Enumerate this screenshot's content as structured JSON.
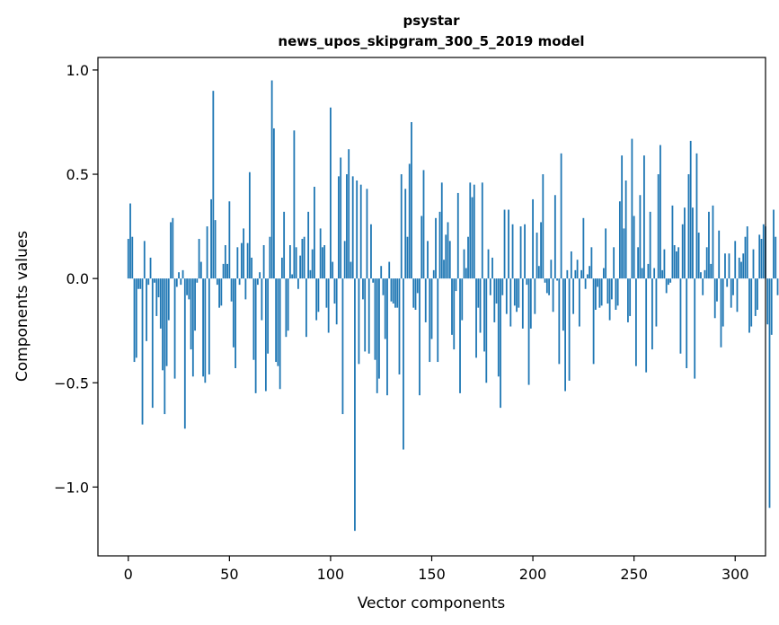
{
  "chart_data": {
    "type": "bar",
    "title_lines": [
      "psystar",
      "news_upos_skipgram_300_5_2019 model"
    ],
    "xlabel": "Vector components",
    "ylabel": "Components values",
    "xlim": [
      -15,
      315
    ],
    "ylim": [
      -1.33,
      1.06
    ],
    "xticks": [
      0,
      50,
      100,
      150,
      200,
      250,
      300
    ],
    "xtick_labels": [
      "0",
      "50",
      "100",
      "150",
      "200",
      "250",
      "300"
    ],
    "yticks": [
      1.0,
      0.5,
      0.0,
      -0.5,
      -1.0
    ],
    "ytick_labels": [
      "1.0",
      "0.5",
      "0.0",
      "−0.5",
      "−1.0"
    ],
    "grid": false,
    "color": "#1f77b4",
    "values": [
      0.19,
      0.36,
      0.2,
      -0.4,
      -0.38,
      -0.05,
      -0.05,
      -0.7,
      0.18,
      -0.3,
      -0.03,
      0.1,
      -0.62,
      -0.02,
      -0.18,
      -0.09,
      -0.24,
      -0.44,
      -0.65,
      -0.42,
      -0.2,
      0.27,
      0.29,
      -0.48,
      -0.04,
      0.03,
      -0.03,
      0.04,
      -0.72,
      -0.08,
      -0.1,
      -0.34,
      -0.47,
      -0.25,
      -0.02,
      0.19,
      0.08,
      -0.47,
      -0.5,
      0.25,
      -0.46,
      0.38,
      0.9,
      0.28,
      -0.03,
      -0.14,
      -0.13,
      0.07,
      0.16,
      0.07,
      0.37,
      -0.11,
      -0.33,
      -0.43,
      0.15,
      -0.03,
      0.17,
      0.24,
      -0.1,
      0.17,
      0.51,
      0.1,
      -0.39,
      -0.55,
      -0.03,
      0.03,
      -0.2,
      0.16,
      -0.54,
      -0.36,
      0.2,
      0.95,
      0.72,
      -0.4,
      -0.42,
      -0.53,
      0.1,
      0.32,
      -0.28,
      -0.25,
      0.16,
      0.02,
      0.71,
      0.15,
      -0.05,
      0.11,
      0.19,
      0.2,
      -0.28,
      0.32,
      0.04,
      0.14,
      0.44,
      -0.2,
      -0.16,
      0.24,
      0.15,
      0.16,
      -0.14,
      -0.26,
      0.82,
      0.08,
      -0.12,
      -0.22,
      0.49,
      0.58,
      -0.65,
      0.18,
      0.5,
      0.62,
      0.08,
      0.49,
      -1.21,
      0.47,
      -0.41,
      0.45,
      -0.1,
      -0.35,
      0.43,
      -0.36,
      0.26,
      -0.02,
      -0.39,
      -0.55,
      -0.48,
      0.06,
      -0.08,
      -0.29,
      -0.56,
      0.08,
      -0.11,
      -0.12,
      -0.14,
      -0.14,
      -0.46,
      0.5,
      -0.82,
      0.43,
      0.2,
      0.55,
      0.75,
      -0.14,
      -0.15,
      -0.07,
      -0.56,
      0.3,
      0.52,
      -0.21,
      0.18,
      -0.4,
      -0.29,
      0.04,
      0.29,
      -0.4,
      0.32,
      0.46,
      0.09,
      0.21,
      0.27,
      0.18,
      -0.27,
      -0.34,
      -0.06,
      0.41,
      -0.55,
      -0.2,
      0.14,
      0.05,
      0.2,
      0.46,
      0.39,
      0.45,
      -0.38,
      -0.14,
      -0.26,
      0.46,
      -0.35,
      -0.5,
      0.14,
      -0.08,
      0.1,
      -0.21,
      -0.12,
      -0.47,
      -0.62,
      -0.08,
      0.33,
      -0.17,
      0.33,
      -0.23,
      0.26,
      -0.13,
      -0.16,
      -0.14,
      0.25,
      -0.24,
      0.26,
      -0.03,
      -0.51,
      -0.24,
      0.38,
      -0.17,
      0.22,
      0.06,
      0.27,
      0.5,
      -0.02,
      -0.07,
      -0.08,
      0.09,
      -0.16,
      0.4,
      -0.01,
      -0.41,
      0.6,
      -0.25,
      -0.54,
      0.04,
      -0.49,
      0.13,
      -0.17,
      0.04,
      0.09,
      -0.23,
      0.04,
      0.29,
      -0.05,
      0.02,
      0.06,
      0.15,
      -0.41,
      -0.15,
      -0.04,
      -0.14,
      -0.13,
      0.05,
      0.24,
      -0.12,
      -0.2,
      -0.1,
      0.15,
      -0.15,
      -0.13,
      0.37,
      0.59,
      0.24,
      0.47,
      -0.21,
      -0.18,
      0.67,
      0.3,
      -0.42,
      0.15,
      0.4,
      0.05,
      0.59,
      -0.45,
      0.07,
      0.32,
      -0.34,
      0.05,
      -0.23,
      0.5,
      0.64,
      0.04,
      0.14,
      -0.07,
      -0.03,
      -0.02,
      0.35,
      0.16,
      0.13,
      0.15,
      -0.36,
      0.26,
      0.34,
      -0.43,
      0.5,
      0.66,
      0.34,
      -0.48,
      0.6,
      0.22,
      0.03,
      -0.08,
      0.04,
      0.15,
      0.32,
      0.07,
      0.35,
      -0.19,
      -0.11,
      0.23,
      -0.33,
      -0.23,
      0.12,
      -0.04,
      0.12,
      -0.14,
      -0.08,
      0.18,
      -0.16,
      0.1,
      0.08,
      0.12,
      0.2,
      0.25,
      -0.26,
      -0.23,
      0.14,
      -0.18,
      -0.15,
      0.21,
      0.19,
      0.26,
      0.25,
      -0.22,
      -1.1,
      -0.27,
      0.33,
      0.2,
      -0.08
    ],
    "series": [
      {
        "name": "psystar",
        "color": "#1f77b4"
      }
    ]
  }
}
